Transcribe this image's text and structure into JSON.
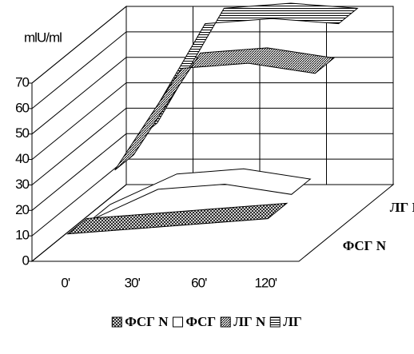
{
  "chart_data": {
    "type": "ribbon3d",
    "y_label": "mlU/ml",
    "categories": [
      "0'",
      "30'",
      "60'",
      "120'"
    ],
    "series": [
      {
        "name": "ФСГ N",
        "color": "#000000",
        "pattern": "cross",
        "values": [
          10,
          12,
          14,
          16
        ]
      },
      {
        "name": "ФСГ",
        "color": "#000000",
        "pattern": "none",
        "values": [
          8,
          20,
          22,
          18
        ]
      },
      {
        "name": "ЛГ N",
        "color": "#000000",
        "pattern": "diagonal",
        "values": [
          20,
          60,
          62,
          58
        ]
      },
      {
        "name": "ЛГ",
        "color": "#000000",
        "pattern": "horizontal",
        "values": [
          25,
          70,
          72,
          70
        ]
      }
    ],
    "depth_labels": [
      "ФСГ N",
      "ЛГ N"
    ],
    "ylim": [
      0,
      70
    ],
    "yticks": [
      0,
      10,
      20,
      30,
      40,
      50,
      60,
      70
    ],
    "grid": true,
    "legend": "bottom"
  }
}
